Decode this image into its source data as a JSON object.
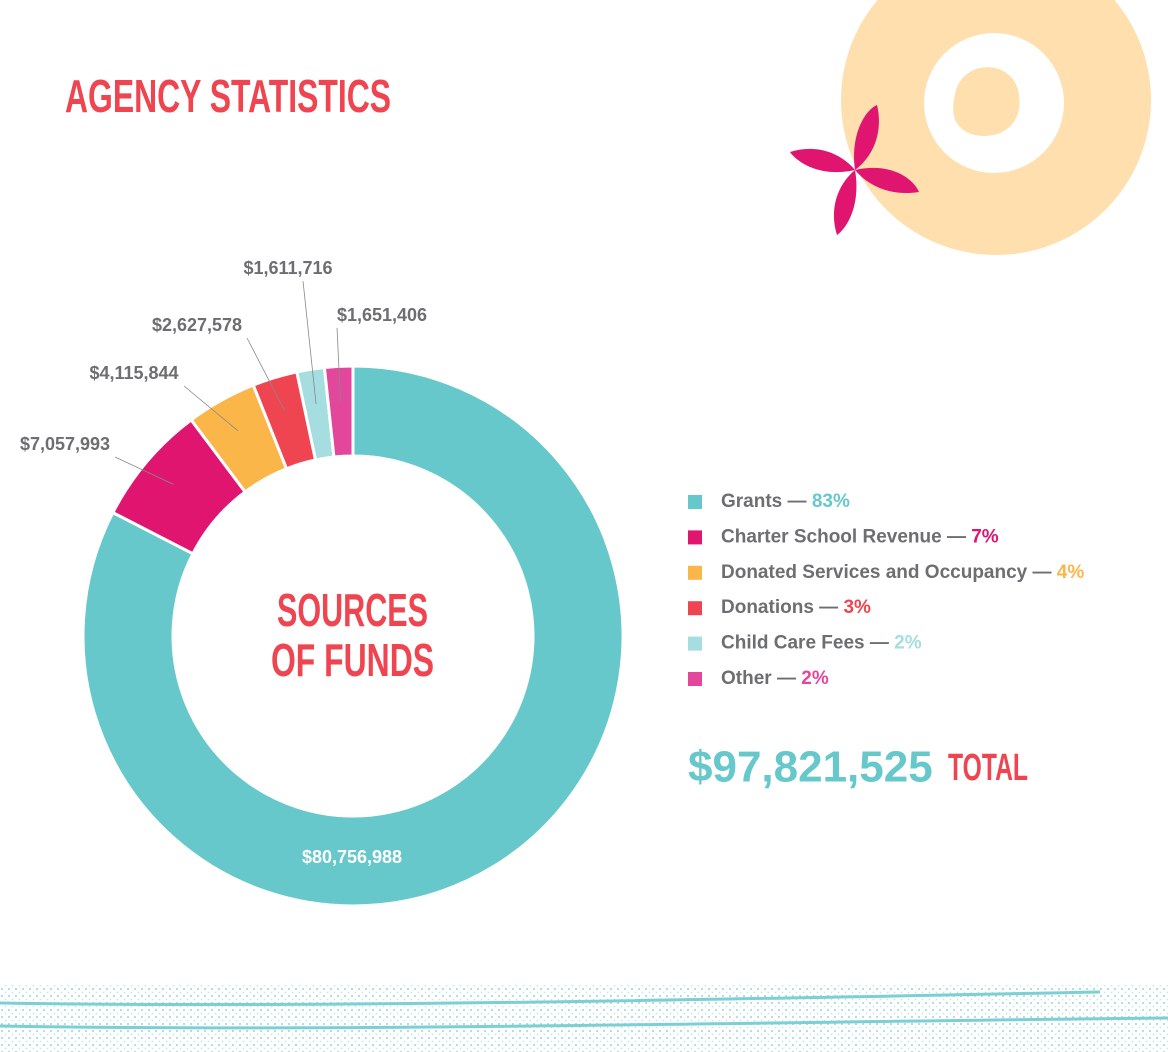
{
  "chart_data": {
    "type": "pie",
    "title": "AGENCY STATISTICS",
    "center_label": [
      "SOURCES",
      "OF FUNDS"
    ],
    "categories": [
      "Grants",
      "Charter School Revenue",
      "Donated Services and Occupancy",
      "Donations",
      "Child Care Fees",
      "Other"
    ],
    "values": [
      80756988,
      7057993,
      4115844,
      2627578,
      1611716,
      1651406
    ],
    "value_labels": [
      "$80,756,988",
      "$7,057,993",
      "$4,115,844",
      "$2,627,578",
      "$1,611,716",
      "$1,651,406"
    ],
    "colors": [
      "#67c8cc",
      "#e0156f",
      "#fbb64a",
      "#ef4550",
      "#a5dde0",
      "#e2479c"
    ],
    "shares": [
      83,
      7,
      4,
      3,
      2,
      2
    ],
    "share_labels": [
      "83%",
      "7%",
      "4%",
      "3%",
      "2%",
      "2%"
    ],
    "legend_separator": " — ",
    "total": 97821525,
    "total_label": "$97,821,525",
    "total_suffix": "TOTAL"
  }
}
